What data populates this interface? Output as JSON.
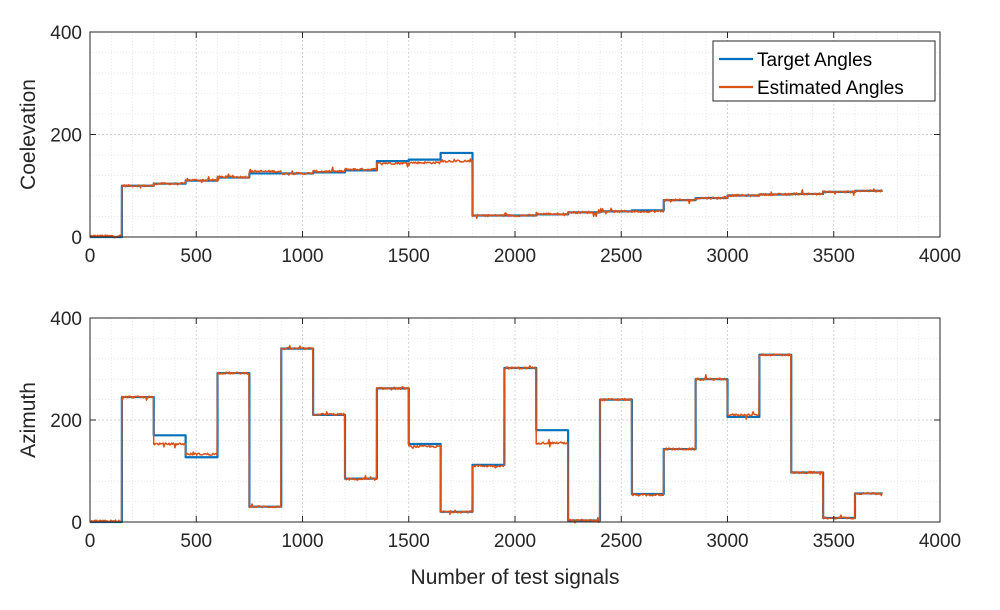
{
  "chart_data": [
    {
      "type": "line",
      "ylabel": "Coelevation",
      "xlabel": "",
      "xlim": [
        0,
        4000
      ],
      "ylim": [
        0,
        400
      ],
      "xticks": [
        0,
        500,
        1000,
        1500,
        2000,
        2500,
        3000,
        3500,
        4000
      ],
      "yticks": [
        0,
        200,
        400
      ],
      "grid": true,
      "legend_position": "top-right",
      "legend": [
        "Target Angles",
        "Estimated Angles"
      ],
      "colors": [
        "#0072BD",
        "#D95319"
      ],
      "series": [
        {
          "name": "Target Angles",
          "segments": [
            {
              "x0": 0,
              "x1": 150,
              "y": 0
            },
            {
              "x0": 150,
              "x1": 300,
              "y": 100
            },
            {
              "x0": 300,
              "x1": 450,
              "y": 104
            },
            {
              "x0": 450,
              "x1": 600,
              "y": 110
            },
            {
              "x0": 600,
              "x1": 750,
              "y": 116
            },
            {
              "x0": 750,
              "x1": 900,
              "y": 124
            },
            {
              "x0": 900,
              "x1": 1050,
              "y": 124
            },
            {
              "x0": 1050,
              "x1": 1200,
              "y": 126
            },
            {
              "x0": 1200,
              "x1": 1350,
              "y": 130
            },
            {
              "x0": 1350,
              "x1": 1500,
              "y": 148
            },
            {
              "x0": 1500,
              "x1": 1650,
              "y": 151
            },
            {
              "x0": 1650,
              "x1": 1800,
              "y": 164
            },
            {
              "x0": 1800,
              "x1": 1950,
              "y": 42
            },
            {
              "x0": 1950,
              "x1": 2100,
              "y": 42
            },
            {
              "x0": 2100,
              "x1": 2250,
              "y": 44
            },
            {
              "x0": 2250,
              "x1": 2400,
              "y": 48
            },
            {
              "x0": 2400,
              "x1": 2550,
              "y": 50
            },
            {
              "x0": 2550,
              "x1": 2700,
              "y": 52
            },
            {
              "x0": 2700,
              "x1": 2850,
              "y": 72
            },
            {
              "x0": 2850,
              "x1": 3000,
              "y": 76
            },
            {
              "x0": 3000,
              "x1": 3150,
              "y": 81
            },
            {
              "x0": 3150,
              "x1": 3300,
              "y": 83
            },
            {
              "x0": 3300,
              "x1": 3450,
              "y": 84
            },
            {
              "x0": 3450,
              "x1": 3600,
              "y": 88
            },
            {
              "x0": 3600,
              "x1": 3730,
              "y": 90
            }
          ]
        },
        {
          "name": "Estimated Angles",
          "segments": [
            {
              "x0": 0,
              "x1": 150,
              "y": 2
            },
            {
              "x0": 150,
              "x1": 300,
              "y": 100
            },
            {
              "x0": 300,
              "x1": 450,
              "y": 104
            },
            {
              "x0": 450,
              "x1": 600,
              "y": 111
            },
            {
              "x0": 600,
              "x1": 750,
              "y": 117
            },
            {
              "x0": 750,
              "x1": 900,
              "y": 128
            },
            {
              "x0": 900,
              "x1": 1050,
              "y": 124
            },
            {
              "x0": 1050,
              "x1": 1200,
              "y": 128
            },
            {
              "x0": 1200,
              "x1": 1350,
              "y": 132
            },
            {
              "x0": 1350,
              "x1": 1500,
              "y": 144
            },
            {
              "x0": 1500,
              "x1": 1650,
              "y": 145
            },
            {
              "x0": 1650,
              "x1": 1800,
              "y": 148
            },
            {
              "x0": 1800,
              "x1": 1950,
              "y": 42
            },
            {
              "x0": 1950,
              "x1": 2100,
              "y": 42
            },
            {
              "x0": 2100,
              "x1": 2250,
              "y": 45
            },
            {
              "x0": 2250,
              "x1": 2400,
              "y": 48
            },
            {
              "x0": 2400,
              "x1": 2550,
              "y": 50
            },
            {
              "x0": 2550,
              "x1": 2700,
              "y": 50
            },
            {
              "x0": 2700,
              "x1": 2850,
              "y": 72
            },
            {
              "x0": 2850,
              "x1": 3000,
              "y": 76
            },
            {
              "x0": 3000,
              "x1": 3150,
              "y": 81
            },
            {
              "x0": 3150,
              "x1": 3300,
              "y": 83
            },
            {
              "x0": 3300,
              "x1": 3450,
              "y": 84
            },
            {
              "x0": 3450,
              "x1": 3600,
              "y": 88
            },
            {
              "x0": 3600,
              "x1": 3730,
              "y": 90
            }
          ]
        }
      ]
    },
    {
      "type": "line",
      "ylabel": "Azimuth",
      "xlabel": "Number of test signals",
      "xlim": [
        0,
        4000
      ],
      "ylim": [
        0,
        400
      ],
      "xticks": [
        0,
        500,
        1000,
        1500,
        2000,
        2500,
        3000,
        3500,
        4000
      ],
      "yticks": [
        0,
        200,
        400
      ],
      "grid": true,
      "colors": [
        "#0072BD",
        "#D95319"
      ],
      "series": [
        {
          "name": "Target Angles",
          "segments": [
            {
              "x0": 0,
              "x1": 150,
              "y": 0
            },
            {
              "x0": 150,
              "x1": 300,
              "y": 245
            },
            {
              "x0": 300,
              "x1": 450,
              "y": 170
            },
            {
              "x0": 450,
              "x1": 600,
              "y": 127
            },
            {
              "x0": 600,
              "x1": 750,
              "y": 292
            },
            {
              "x0": 750,
              "x1": 900,
              "y": 30
            },
            {
              "x0": 900,
              "x1": 1050,
              "y": 340
            },
            {
              "x0": 1050,
              "x1": 1200,
              "y": 210
            },
            {
              "x0": 1200,
              "x1": 1350,
              "y": 85
            },
            {
              "x0": 1350,
              "x1": 1500,
              "y": 262
            },
            {
              "x0": 1500,
              "x1": 1650,
              "y": 153
            },
            {
              "x0": 1650,
              "x1": 1800,
              "y": 20
            },
            {
              "x0": 1800,
              "x1": 1950,
              "y": 112
            },
            {
              "x0": 1950,
              "x1": 2100,
              "y": 302
            },
            {
              "x0": 2100,
              "x1": 2250,
              "y": 180
            },
            {
              "x0": 2250,
              "x1": 2400,
              "y": 3
            },
            {
              "x0": 2400,
              "x1": 2550,
              "y": 240
            },
            {
              "x0": 2550,
              "x1": 2700,
              "y": 55
            },
            {
              "x0": 2700,
              "x1": 2850,
              "y": 143
            },
            {
              "x0": 2850,
              "x1": 3000,
              "y": 280
            },
            {
              "x0": 3000,
              "x1": 3150,
              "y": 206
            },
            {
              "x0": 3150,
              "x1": 3300,
              "y": 328
            },
            {
              "x0": 3300,
              "x1": 3450,
              "y": 97
            },
            {
              "x0": 3450,
              "x1": 3600,
              "y": 8
            },
            {
              "x0": 3600,
              "x1": 3730,
              "y": 56
            }
          ]
        },
        {
          "name": "Estimated Angles",
          "segments": [
            {
              "x0": 0,
              "x1": 150,
              "y": 2
            },
            {
              "x0": 150,
              "x1": 300,
              "y": 245
            },
            {
              "x0": 300,
              "x1": 450,
              "y": 153
            },
            {
              "x0": 450,
              "x1": 600,
              "y": 133
            },
            {
              "x0": 600,
              "x1": 750,
              "y": 292
            },
            {
              "x0": 750,
              "x1": 900,
              "y": 30
            },
            {
              "x0": 900,
              "x1": 1050,
              "y": 340
            },
            {
              "x0": 1050,
              "x1": 1200,
              "y": 211
            },
            {
              "x0": 1200,
              "x1": 1350,
              "y": 84
            },
            {
              "x0": 1350,
              "x1": 1500,
              "y": 262
            },
            {
              "x0": 1500,
              "x1": 1650,
              "y": 148
            },
            {
              "x0": 1650,
              "x1": 1800,
              "y": 20
            },
            {
              "x0": 1800,
              "x1": 1950,
              "y": 110
            },
            {
              "x0": 1950,
              "x1": 2100,
              "y": 302
            },
            {
              "x0": 2100,
              "x1": 2250,
              "y": 155
            },
            {
              "x0": 2250,
              "x1": 2400,
              "y": 3
            },
            {
              "x0": 2400,
              "x1": 2550,
              "y": 240
            },
            {
              "x0": 2550,
              "x1": 2700,
              "y": 53
            },
            {
              "x0": 2700,
              "x1": 2850,
              "y": 143
            },
            {
              "x0": 2850,
              "x1": 3000,
              "y": 280
            },
            {
              "x0": 3000,
              "x1": 3150,
              "y": 210
            },
            {
              "x0": 3150,
              "x1": 3300,
              "y": 328
            },
            {
              "x0": 3300,
              "x1": 3450,
              "y": 97
            },
            {
              "x0": 3450,
              "x1": 3600,
              "y": 8
            },
            {
              "x0": 3600,
              "x1": 3730,
              "y": 56
            }
          ]
        }
      ]
    }
  ]
}
